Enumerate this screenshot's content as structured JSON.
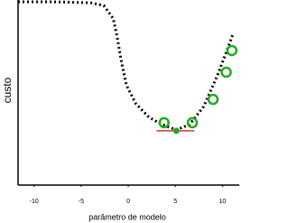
{
  "chart_data": {
    "type": "line",
    "xlabel": "parâmetro de modelo",
    "ylabel": "custo",
    "xlim": [
      -11.7,
      11.5
    ],
    "ylim": [
      0,
      10
    ],
    "xticks": [
      -10,
      -5,
      0,
      5,
      10
    ],
    "curve": {
      "color": "#000000",
      "x": [
        -11.7,
        -7.9,
        -4.0,
        -2.6,
        -1.6,
        -1.2,
        -0.7,
        -0.2,
        0.8,
        2.2,
        3.6,
        5.1,
        6.5,
        8.0,
        9.4,
        10.4,
        11.1
      ],
      "values": [
        9.9,
        9.9,
        9.85,
        9.7,
        9.0,
        8.05,
        6.6,
        5.4,
        4.4,
        3.66,
        3.27,
        2.98,
        3.27,
        4.24,
        5.85,
        7.17,
        8.15
      ]
    },
    "samples": {
      "color": "#22aa22",
      "x": [
        3.8,
        6.8,
        9.0,
        10.4,
        11.0
      ],
      "values": [
        3.37,
        3.37,
        4.63,
        6.1,
        7.27
      ]
    },
    "minimum": {
      "color": "#22aa22",
      "x": 5.1,
      "value": 2.93
    },
    "tangent": {
      "color": "#dd3322",
      "x": [
        3.0,
        7.0
      ],
      "values": [
        2.93,
        2.93
      ]
    }
  }
}
